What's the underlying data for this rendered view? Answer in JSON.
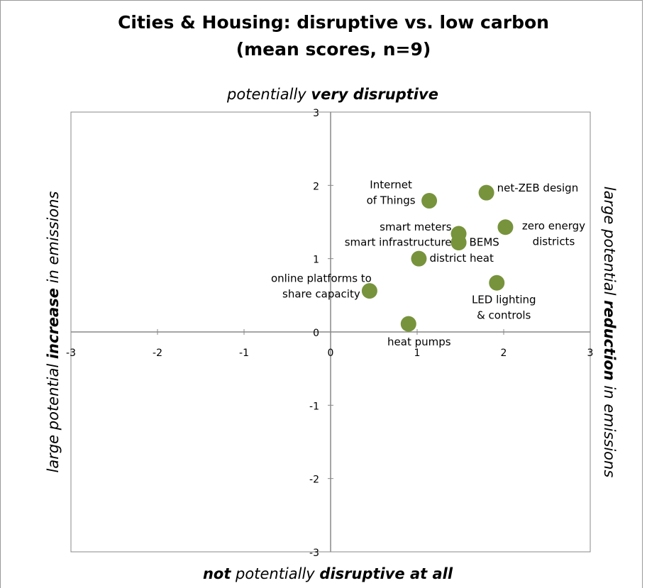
{
  "chart_data": {
    "type": "scatter",
    "title": [
      "Cities & Housing: disruptive vs. low carbon",
      "(mean scores, n=9)"
    ],
    "top_label": [
      "potentially ",
      "very disruptive"
    ],
    "bottom_label": [
      "not",
      " potentially ",
      "disruptive at all"
    ],
    "left_label": [
      "large potential ",
      "increase",
      " in emissions"
    ],
    "right_label": [
      "large potential ",
      "reduction",
      " in emissions"
    ],
    "color": "#77933c",
    "points": [
      {
        "label": [
          "Internet",
          "of Things"
        ],
        "x": 1.14,
        "y": 1.79
      },
      {
        "label": [
          "net-ZEB design"
        ],
        "x": 1.8,
        "y": 1.9
      },
      {
        "label": [
          "zero energy",
          "districts"
        ],
        "x": 2.02,
        "y": 1.43
      },
      {
        "label": [
          "smart meters"
        ],
        "x": 1.48,
        "y": 1.34
      },
      {
        "label": [
          "smart infrastructure"
        ],
        "x": 1.48,
        "y": 1.22
      },
      {
        "label": [
          "BEMS"
        ],
        "x": 1.48,
        "y": 1.22
      },
      {
        "label": [
          "district heat"
        ],
        "x": 1.02,
        "y": 1.0
      },
      {
        "label": [
          "online platforms to",
          "share capacity"
        ],
        "x": 0.45,
        "y": 0.56
      },
      {
        "label": [
          "LED lighting",
          "& controls"
        ],
        "x": 1.92,
        "y": 0.67
      },
      {
        "label": [
          "heat pumps"
        ],
        "x": 0.9,
        "y": 0.11
      }
    ],
    "xlim": [
      -3,
      3
    ],
    "xticks": [
      -3,
      -2,
      -1,
      0,
      1,
      2,
      3
    ],
    "ylim": [
      -3,
      3
    ],
    "yticks": [
      -3,
      -2,
      -1,
      0,
      1,
      2,
      3
    ]
  }
}
